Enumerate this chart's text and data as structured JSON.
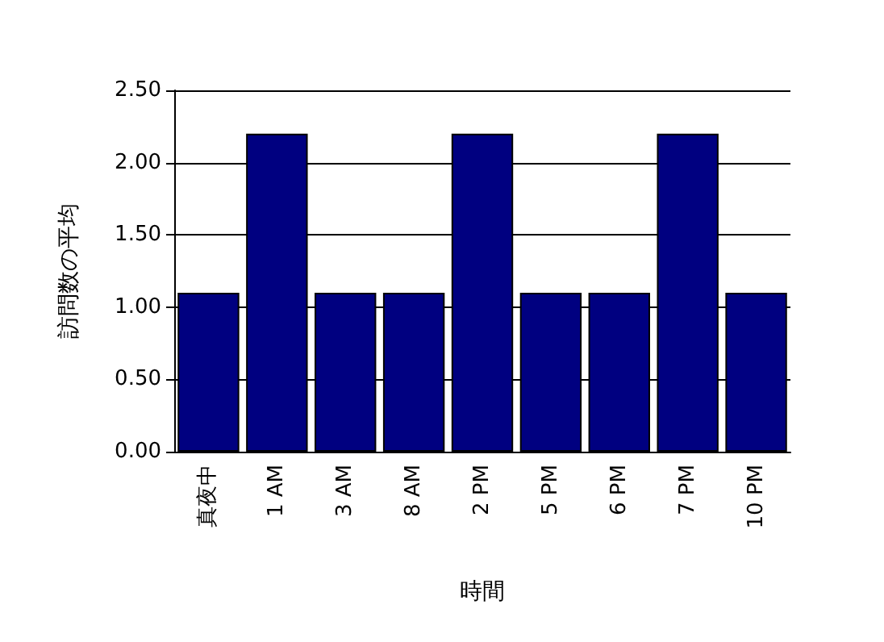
{
  "chart_data": {
    "type": "bar",
    "xlabel": "時間",
    "ylabel": "訪問数の平均",
    "categories": [
      "真夜中",
      "1 AM",
      "3 AM",
      "8 AM",
      "2 PM",
      "5 PM",
      "6 PM",
      "7 PM",
      "10 PM"
    ],
    "values": [
      1.1,
      2.2,
      1.1,
      1.1,
      2.2,
      1.1,
      1.1,
      2.2,
      1.1
    ],
    "color": "#000080",
    "ylim": [
      0,
      2.5
    ],
    "yticks": [
      {
        "value": 0,
        "label": "0.00"
      },
      {
        "value": 0.5,
        "label": "0.50"
      },
      {
        "value": 1,
        "label": "1.00"
      },
      {
        "value": 1.5,
        "label": "1.50"
      },
      {
        "value": 2,
        "label": "2.00"
      },
      {
        "value": 2.5,
        "label": "2.50"
      }
    ],
    "grid": "y"
  }
}
